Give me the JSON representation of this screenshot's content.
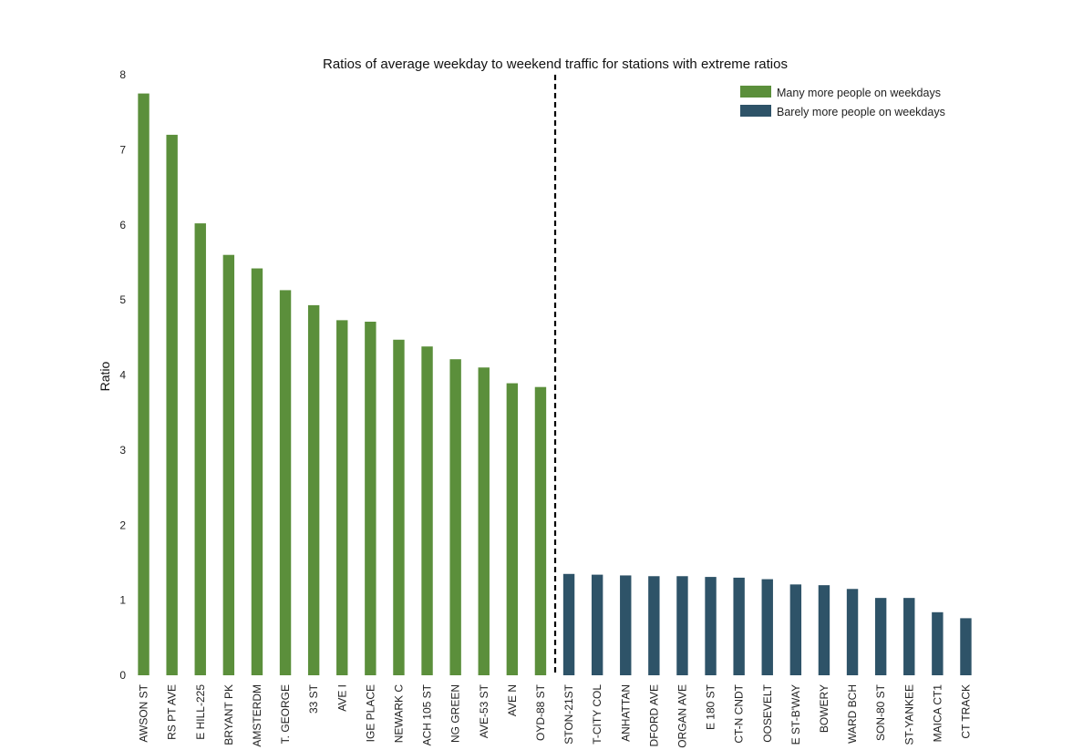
{
  "chart_data": {
    "type": "bar",
    "title": "Ratios of average weekday to weekend traffic for stations with extreme ratios",
    "xlabel": "",
    "ylabel": "Ratio",
    "ylim": [
      0,
      8
    ],
    "yticks": [
      0,
      1,
      2,
      3,
      4,
      5,
      6,
      7,
      8
    ],
    "grid": false,
    "legend_position": "top-right",
    "colors": {
      "many": "#5b8f3b",
      "barely": "#2e5368",
      "divider": "#000000"
    },
    "series": [
      {
        "name": "Many more people on weekdays",
        "categories": [
          "AWSON ST",
          "RS PT AVE",
          "E HILL-225",
          "BRYANT PK",
          "AMSTERDM",
          "T. GEORGE",
          "33 ST",
          "AVE I",
          "IGE PLACE",
          "NEWARK C",
          "ACH 105 ST",
          "NG GREEN",
          "AVE-53 ST",
          "AVE N",
          "OYD-88 ST"
        ],
        "values": [
          7.75,
          7.2,
          6.02,
          5.6,
          5.42,
          5.13,
          4.93,
          4.73,
          4.71,
          4.47,
          4.38,
          4.21,
          4.1,
          3.89,
          3.84
        ]
      },
      {
        "name": "Barely more people on weekdays",
        "categories": [
          "STON-21ST",
          "T-CITY COL",
          "ANHATTAN",
          "DFORD AVE",
          "ORGAN AVE",
          "E 180 ST",
          "CT-N CNDT",
          "OOSEVELT",
          "E ST-B'WAY",
          "BOWERY",
          "WARD BCH",
          "SON-80 ST",
          "ST-YANKEE",
          "MAICA CT1",
          "CT TRACK"
        ],
        "values": [
          1.35,
          1.34,
          1.33,
          1.32,
          1.32,
          1.31,
          1.3,
          1.28,
          1.21,
          1.2,
          1.15,
          1.03,
          1.03,
          0.84,
          0.76
        ]
      }
    ]
  }
}
